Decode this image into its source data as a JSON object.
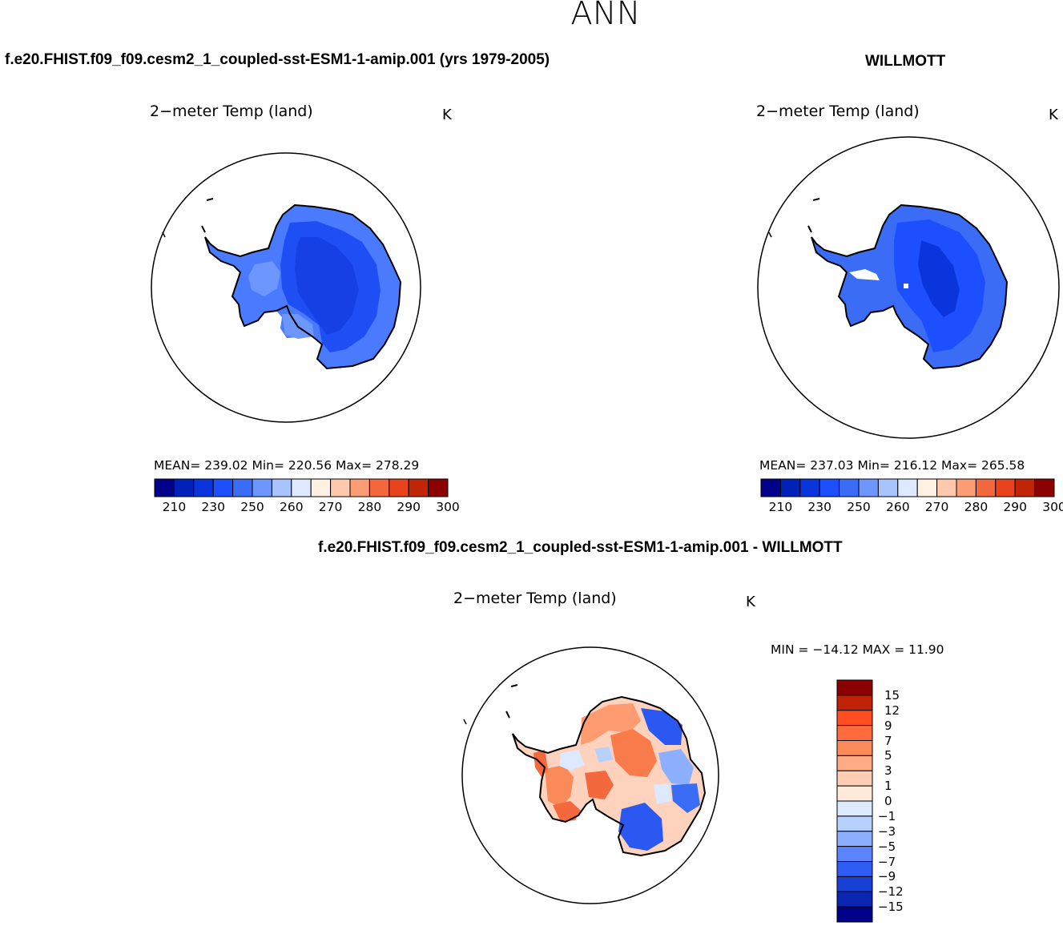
{
  "figure": {
    "season": "ANN"
  },
  "panels": [
    {
      "case": "f.e20.FHIST.f09_f09.cesm2_1_coupled-sst-ESM1-1-amip.001 (yrs 1979-2005)",
      "variable": "2−meter Temp (land)",
      "units": "K",
      "stats_text": "MEAN= 239.02   Min= 220.56   Max= 278.29",
      "mean": 239.02,
      "min": 220.56,
      "max": 278.29
    },
    {
      "case": "WILLMOTT",
      "variable": "2−meter Temp (land)",
      "units": "K",
      "stats_text": "MEAN= 237.03   Min= 216.12   Max= 265.58",
      "mean": 237.03,
      "min": 216.12,
      "max": 265.58
    },
    {
      "case": "f.e20.FHIST.f09_f09.cesm2_1_coupled-sst-ESM1-1-amip.001 - WILLMOTT",
      "variable": "2−meter Temp (land)",
      "units": "K",
      "stats_text": "MIN = −14.12 MAX =   11.90",
      "min": -14.12,
      "max": 11.9
    }
  ],
  "chart_data": [
    {
      "type": "heatmap",
      "title": "2-meter Temp (land)",
      "subtitle": "f.e20.FHIST.f09_f09.cesm2_1_coupled-sst-ESM1-1-amip.001 (yrs 1979-2005)",
      "projection": "south-polar-stereographic",
      "units": "K",
      "mean": 239.02,
      "min": 220.56,
      "max": 278.29,
      "colorbar_levels": [
        "210",
        "230",
        "250",
        "260",
        "270",
        "280",
        "290",
        "300"
      ]
    },
    {
      "type": "heatmap",
      "title": "2-meter Temp (land)",
      "subtitle": "WILLMOTT",
      "projection": "south-polar-stereographic",
      "units": "K",
      "mean": 237.03,
      "min": 216.12,
      "max": 265.58,
      "colorbar_levels": [
        "210",
        "230",
        "250",
        "260",
        "270",
        "280",
        "290",
        "300"
      ]
    },
    {
      "type": "heatmap",
      "title": "2-meter Temp (land)",
      "subtitle": "f.e20.FHIST.f09_f09.cesm2_1_coupled-sst-ESM1-1-amip.001 - WILLMOTT",
      "projection": "south-polar-stereographic",
      "units": "K",
      "min": -14.12,
      "max": 11.9,
      "colorbar_levels": [
        "15",
        "12",
        "9",
        "7",
        "5",
        "3",
        "1",
        "0",
        "−1",
        "−3",
        "−5",
        "−7",
        "−9",
        "−12",
        "−15"
      ]
    }
  ],
  "colorbars": {
    "abs_colors": [
      "#00008b",
      "#0022bb",
      "#0a35dc",
      "#1e4fff",
      "#3b6cf5",
      "#6e96ff",
      "#a8c4ff",
      "#dde9ff",
      "#fff0e2",
      "#ffc9ad",
      "#fc9d76",
      "#f4683e",
      "#e8431c",
      "#c02508",
      "#8b0000"
    ],
    "abs_ticks": [
      "210",
      "230",
      "250",
      "260",
      "270",
      "280",
      "290",
      "300"
    ],
    "diff_colors": [
      "#8b0000",
      "#bf2206",
      "#ff4f20",
      "#ff6b3c",
      "#fb8a5a",
      "#ffab85",
      "#ffcdb3",
      "#ffeadc",
      "#dceaff",
      "#b7d1ff",
      "#8cb0ff",
      "#5b85ff",
      "#2f5cf5",
      "#1740d4",
      "#0a25b0",
      "#00008b"
    ],
    "diff_ticks": [
      "15",
      "12",
      "9",
      "7",
      "5",
      "3",
      "1",
      "0",
      "−1",
      "−3",
      "−5",
      "−7",
      "−9",
      "−12",
      "−15"
    ]
  }
}
